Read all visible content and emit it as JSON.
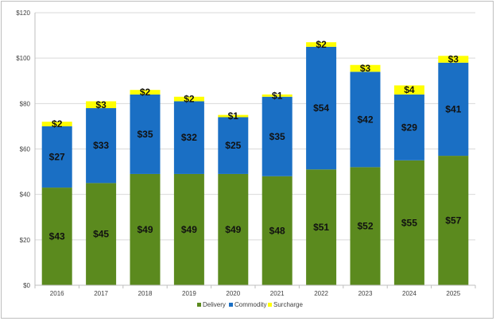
{
  "chart_data": {
    "type": "bar",
    "stacked": true,
    "title": "",
    "xlabel": "",
    "ylabel": "",
    "categories": [
      "2016",
      "2017",
      "2018",
      "2019",
      "2020",
      "2021",
      "2022",
      "2023",
      "2024",
      "2025"
    ],
    "series": [
      {
        "name": "Delivery",
        "color": "#5b8a1e",
        "values": [
          43,
          45,
          49,
          49,
          49,
          48,
          51,
          52,
          55,
          57
        ],
        "labels": [
          "$43",
          "$45",
          "$49",
          "$49",
          "$49",
          "$48",
          "$51",
          "$52",
          "$55",
          "$57"
        ]
      },
      {
        "name": "Commodity",
        "color": "#1a6fc4",
        "values": [
          27,
          33,
          35,
          32,
          25,
          35,
          54,
          42,
          29,
          41
        ],
        "labels": [
          "$27",
          "$33",
          "$35",
          "$32",
          "$25",
          "$35",
          "$54",
          "$42",
          "$29",
          "$41"
        ]
      },
      {
        "name": "Surcharge",
        "color": "#ffff00",
        "values": [
          2,
          3,
          2,
          2,
          1,
          1,
          2,
          3,
          4,
          3
        ],
        "labels": [
          "$2",
          "$3",
          "$2",
          "$2",
          "$1",
          "$1",
          "$2",
          "$3",
          "$4",
          "$3"
        ]
      }
    ],
    "ylim": [
      0,
      120
    ],
    "yticks": [
      0,
      20,
      40,
      60,
      80,
      100,
      120
    ],
    "ytick_labels": [
      "$0",
      "$20",
      "$40",
      "$60",
      "$80",
      "$100",
      "$120"
    ],
    "grid": true,
    "legend": "bottom"
  }
}
